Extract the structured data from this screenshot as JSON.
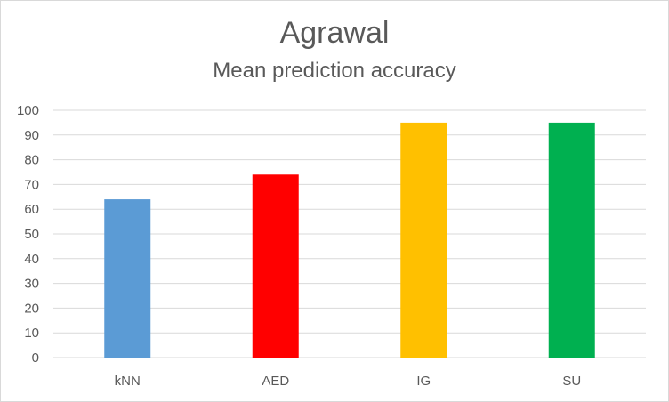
{
  "chart_data": {
    "type": "bar",
    "title": "Agrawal",
    "subtitle": "Mean prediction accuracy",
    "xlabel": "",
    "ylabel": "",
    "categories": [
      "kNN",
      "AED",
      "IG",
      "SU"
    ],
    "values": [
      64,
      74,
      95,
      95
    ],
    "colors": [
      "#5b9bd5",
      "#ff0000",
      "#ffc000",
      "#00b050"
    ],
    "ylim": [
      0,
      100
    ],
    "yticks": [
      0,
      10,
      20,
      30,
      40,
      50,
      60,
      70,
      80,
      90,
      100
    ],
    "grid": true,
    "legend": "none"
  }
}
